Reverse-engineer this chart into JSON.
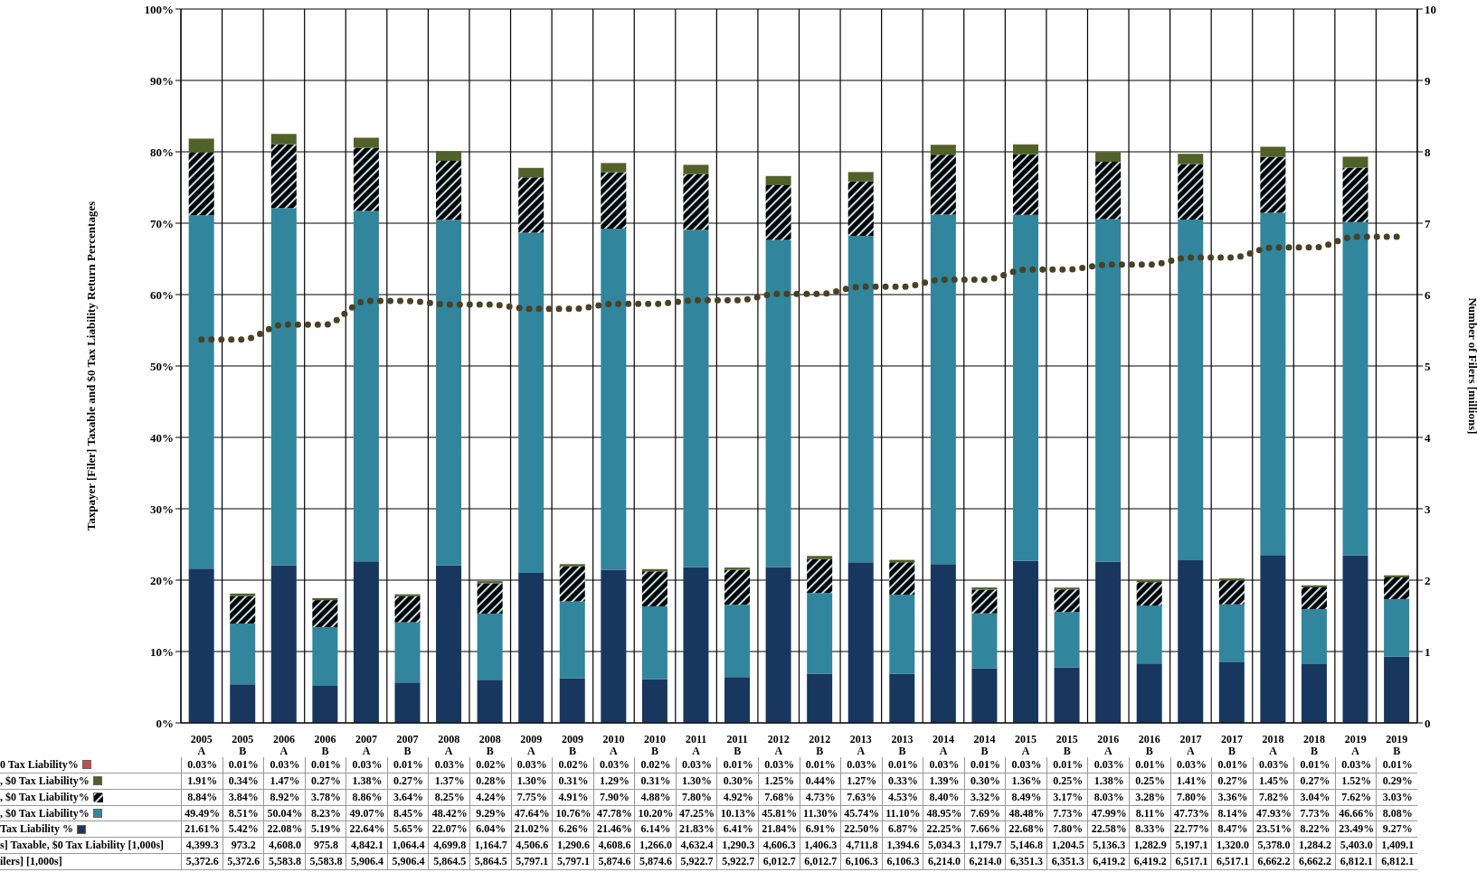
{
  "chart_data": {
    "type": "bar",
    "stacked": true,
    "ylabel": "Taxpayer [Filer] Taxable and $0 Tax Liability Return Percentages",
    "y2label": "Number of Filers [millions]",
    "categories": [
      "2005 A",
      "2005 B",
      "2006 A",
      "2006 B",
      "2007 A",
      "2007 B",
      "2008 A",
      "2008 B",
      "2009 A",
      "2009 B",
      "2010 A",
      "2010 B",
      "2011 A",
      "2011 B",
      "2012 A",
      "2012 B",
      "2013 A",
      "2013 B",
      "2014 A",
      "2014 B",
      "2015 A",
      "2015 B",
      "2016 A",
      "2016 B",
      "2017 A",
      "2017 B",
      "2018 A",
      "2018 B",
      "2019 A",
      "2019 B"
    ],
    "ylim": [
      0,
      100
    ],
    "yticks": [
      {
        "value": 0,
        "label": "0%"
      },
      {
        "value": 10,
        "label": "10%"
      },
      {
        "value": 20,
        "label": "20%"
      },
      {
        "value": 30,
        "label": "30%"
      },
      {
        "value": 40,
        "label": "40%"
      },
      {
        "value": 50,
        "label": "50%"
      },
      {
        "value": 60,
        "label": "60%"
      },
      {
        "value": 70,
        "label": "70%"
      },
      {
        "value": 80,
        "label": "80%"
      },
      {
        "value": 90,
        "label": "90%"
      },
      {
        "value": 100,
        "label": "100%"
      }
    ],
    "y2lim": [
      0,
      10
    ],
    "y2ticks": [
      0,
      1,
      2,
      3,
      4,
      5,
      6,
      7,
      8,
      9,
      10
    ],
    "grid": true,
    "line_style": "dotted",
    "legend": "bottom left",
    "series": [
      {
        "name": "Tax Liability %",
        "color": "#17375e",
        "values": [
          21.61,
          5.42,
          22.08,
          5.19,
          22.64,
          5.65,
          22.07,
          6.04,
          21.02,
          6.26,
          21.46,
          6.14,
          21.83,
          6.41,
          21.84,
          6.91,
          22.5,
          6.87,
          22.25,
          7.66,
          22.68,
          7.8,
          22.58,
          8.33,
          22.77,
          8.47,
          23.51,
          8.22,
          23.49,
          9.27
        ],
        "value_labels": [
          "21.61%",
          "5.42%",
          "22.08%",
          "5.19%",
          "22.64%",
          "5.65%",
          "22.07%",
          "6.04%",
          "21.02%",
          "6.26%",
          "21.46%",
          "6.14%",
          "21.83%",
          "6.41%",
          "21.84%",
          "6.91%",
          "22.50%",
          "6.87%",
          "22.25%",
          "7.66%",
          "22.68%",
          "7.80%",
          "22.58%",
          "8.33%",
          "22.77%",
          "8.47%",
          "23.51%",
          "8.22%",
          "23.49%",
          "9.27%"
        ]
      },
      {
        "name": ", $0 Tax Liability%",
        "color": "#31859c",
        "values": [
          49.49,
          8.51,
          50.04,
          8.23,
          49.07,
          8.45,
          48.42,
          9.29,
          47.64,
          10.76,
          47.78,
          10.2,
          47.25,
          10.13,
          45.81,
          11.3,
          45.74,
          11.1,
          48.95,
          7.69,
          48.48,
          7.73,
          47.99,
          8.11,
          47.73,
          8.14,
          47.93,
          7.73,
          46.66,
          8.08
        ],
        "value_labels": [
          "49.49%",
          "8.51%",
          "50.04%",
          "8.23%",
          "49.07%",
          "8.45%",
          "48.42%",
          "9.29%",
          "47.64%",
          "10.76%",
          "47.78%",
          "10.20%",
          "47.25%",
          "10.13%",
          "45.81%",
          "11.30%",
          "45.74%",
          "11.10%",
          "48.95%",
          "7.69%",
          "48.48%",
          "7.73%",
          "47.99%",
          "8.11%",
          "47.73%",
          "8.14%",
          "47.93%",
          "7.73%",
          "46.66%",
          "8.08%"
        ]
      },
      {
        "name": ", $0 Tax Liability%",
        "color": "#000000",
        "values": [
          8.84,
          3.84,
          8.92,
          3.78,
          8.86,
          3.64,
          8.25,
          4.24,
          7.75,
          4.91,
          7.9,
          4.88,
          7.8,
          4.92,
          7.68,
          4.73,
          7.63,
          4.53,
          8.4,
          3.32,
          8.49,
          3.17,
          8.03,
          3.28,
          7.8,
          3.36,
          7.82,
          3.04,
          7.62,
          3.03
        ],
        "value_labels": [
          "8.84%",
          "3.84%",
          "8.92%",
          "3.78%",
          "8.86%",
          "3.64%",
          "8.25%",
          "4.24%",
          "7.75%",
          "4.91%",
          "7.90%",
          "4.88%",
          "7.80%",
          "4.92%",
          "7.68%",
          "4.73%",
          "7.63%",
          "4.53%",
          "8.40%",
          "3.32%",
          "8.49%",
          "3.17%",
          "8.03%",
          "3.28%",
          "7.80%",
          "3.36%",
          "7.82%",
          "3.04%",
          "7.62%",
          "3.03%"
        ]
      },
      {
        "name": ", $0 Tax Liability%",
        "color": "#4f6228",
        "values": [
          1.91,
          0.34,
          1.47,
          0.27,
          1.38,
          0.27,
          1.37,
          0.28,
          1.3,
          0.31,
          1.29,
          0.31,
          1.3,
          0.3,
          1.25,
          0.44,
          1.27,
          0.33,
          1.39,
          0.3,
          1.36,
          0.25,
          1.38,
          0.25,
          1.41,
          0.27,
          1.45,
          0.27,
          1.52,
          0.29
        ],
        "value_labels": [
          "1.91%",
          "0.34%",
          "1.47%",
          "0.27%",
          "1.38%",
          "0.27%",
          "1.37%",
          "0.28%",
          "1.30%",
          "0.31%",
          "1.29%",
          "0.31%",
          "1.30%",
          "0.30%",
          "1.25%",
          "0.44%",
          "1.27%",
          "0.33%",
          "1.39%",
          "0.30%",
          "1.36%",
          "0.25%",
          "1.38%",
          "0.25%",
          "1.41%",
          "0.27%",
          "1.45%",
          "0.27%",
          "1.52%",
          "0.29%"
        ]
      },
      {
        "name": "0 Tax Liability%",
        "color": "#c0504d",
        "values": [
          0.03,
          0.01,
          0.03,
          0.01,
          0.03,
          0.01,
          0.03,
          0.02,
          0.03,
          0.02,
          0.03,
          0.02,
          0.03,
          0.01,
          0.03,
          0.01,
          0.03,
          0.01,
          0.03,
          0.01,
          0.03,
          0.01,
          0.03,
          0.01,
          0.03,
          0.01,
          0.03,
          0.01,
          0.03,
          0.01
        ],
        "value_labels": [
          "0.03%",
          "0.01%",
          "0.03%",
          "0.01%",
          "0.03%",
          "0.01%",
          "0.03%",
          "0.02%",
          "0.03%",
          "0.02%",
          "0.03%",
          "0.02%",
          "0.03%",
          "0.01%",
          "0.03%",
          "0.01%",
          "0.03%",
          "0.01%",
          "0.03%",
          "0.01%",
          "0.03%",
          "0.01%",
          "0.03%",
          "0.01%",
          "0.03%",
          "0.01%",
          "0.03%",
          "0.01%",
          "0.03%",
          "0.01%"
        ]
      },
      {
        "name": "s] Taxable, $0 Tax Liability [1,000s]",
        "type": "line",
        "axis": "y2",
        "values": [
          null,
          null,
          null,
          null,
          null,
          null,
          null,
          null,
          null,
          null,
          null,
          null,
          null,
          null,
          null,
          null,
          null,
          null,
          null,
          null,
          null,
          null,
          null,
          null,
          null,
          null,
          null,
          null,
          null,
          null
        ],
        "value_labels": [
          "4,399.3",
          "973.2",
          "4,608.0",
          "975.8",
          "4,842.1",
          "1,064.4",
          "4,699.8",
          "1,164.7",
          "4,506.6",
          "1,290.6",
          "4,608.6",
          "1,266.0",
          "4,632.4",
          "1,290.3",
          "4,606.3",
          "1,406.3",
          "4,711.8",
          "1,394.6",
          "5,034.3",
          "1,179.7",
          "5,146.8",
          "1,204.5",
          "5,136.3",
          "1,282.9",
          "5,197.1",
          "1,320.0",
          "5,378.0",
          "1,284.2",
          "5,403.0",
          "1,409.1"
        ]
      },
      {
        "type": "line",
        "axis": "y2",
        "color": "#4a4125",
        "values": [
          5.37,
          5.37,
          5.58,
          5.58,
          5.91,
          5.91,
          5.86,
          5.86,
          5.8,
          5.8,
          5.87,
          5.87,
          5.92,
          5.92,
          6.01,
          6.01,
          6.11,
          6.11,
          6.21,
          6.21,
          6.35,
          6.35,
          6.42,
          6.42,
          6.52,
          6.52,
          6.66,
          6.66,
          6.81,
          6.81
        ]
      },
      {
        "name": "ilers] [1,000s]",
        "type": "line",
        "axis": "y2",
        "values": [
          null,
          null,
          null,
          null,
          null,
          null,
          null,
          null,
          null,
          null,
          null,
          null,
          null,
          null,
          null,
          null,
          null,
          null,
          null,
          null,
          null,
          null,
          null,
          null,
          null,
          null,
          null,
          null,
          null,
          null
        ],
        "value_labels": [
          "5,372.6",
          "5,372.6",
          "5,583.8",
          "5,583.8",
          "5,906.4",
          "5,906.4",
          "5,864.5",
          "5,864.5",
          "5,797.1",
          "5,797.1",
          "5,874.6",
          "5,874.6",
          "5,922.7",
          "5,922.7",
          "6,012.7",
          "6,012.7",
          "6,106.3",
          "6,106.3",
          "6,214.0",
          "6,214.0",
          "6,351.3",
          "6,351.3",
          "6,419.2",
          "6,419.2",
          "6,517.1",
          "6,517.1",
          "6,662.2",
          "6,662.2",
          "6,812.1",
          "6,812.1"
        ]
      }
    ]
  }
}
